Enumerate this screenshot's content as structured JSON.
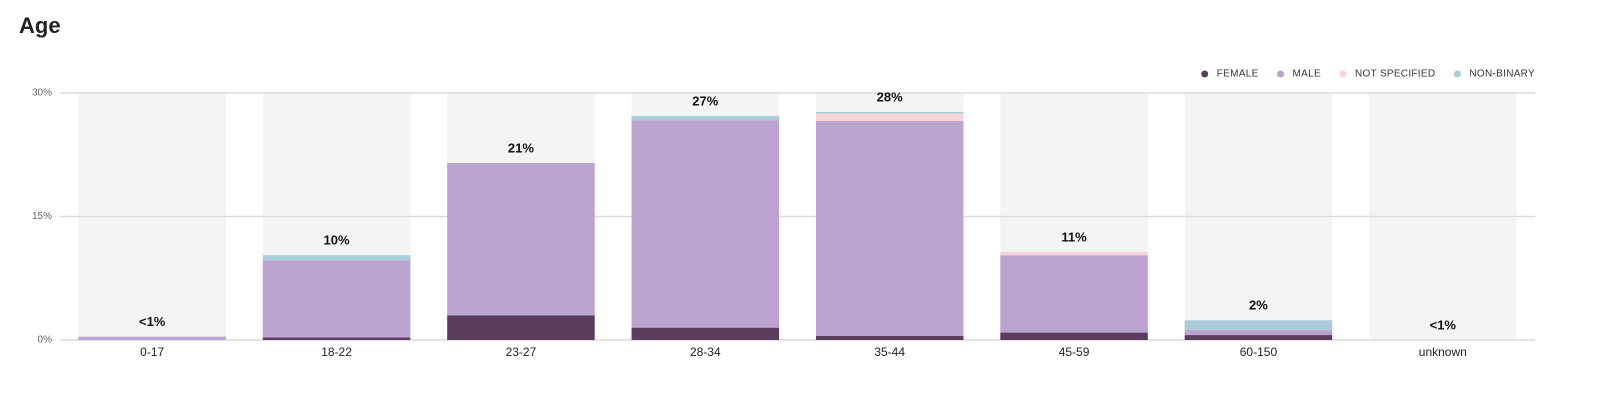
{
  "chart_data": {
    "type": "stacked_bar",
    "title": "Age",
    "categories": [
      "0-17",
      "18-22",
      "23-27",
      "28-34",
      "35-44",
      "45-59",
      "60-150",
      "unknown"
    ],
    "series": [
      {
        "name": "FEMALE",
        "color": "#5a3d5c",
        "values": [
          0,
          0.3,
          3.0,
          1.5,
          0.5,
          0.9,
          0.6,
          0
        ]
      },
      {
        "name": "MALE",
        "color": "#bba4cf",
        "values": [
          0.4,
          9.4,
          18.5,
          25.2,
          26.1,
          9.4,
          0.6,
          0
        ]
      },
      {
        "name": "NOT SPECIFIED",
        "color": "#f9d3dc",
        "values": [
          0,
          0,
          0,
          0,
          0.9,
          0.4,
          0,
          0
        ]
      },
      {
        "name": "NON-BINARY",
        "color": "#a8cdd8",
        "values": [
          0,
          0.6,
          0,
          0.5,
          0.2,
          0,
          1.2,
          0
        ]
      }
    ],
    "total_labels": [
      "<1%",
      "10%",
      "21%",
      "27%",
      "28%",
      "11%",
      "2%",
      "<1%"
    ],
    "ylim": [
      0,
      30
    ],
    "yticks": [
      {
        "value": 0,
        "label": "0%"
      },
      {
        "value": 15,
        "label": "15%"
      },
      {
        "value": 30,
        "label": "30%"
      }
    ],
    "grid": true,
    "legend": "top-right"
  }
}
